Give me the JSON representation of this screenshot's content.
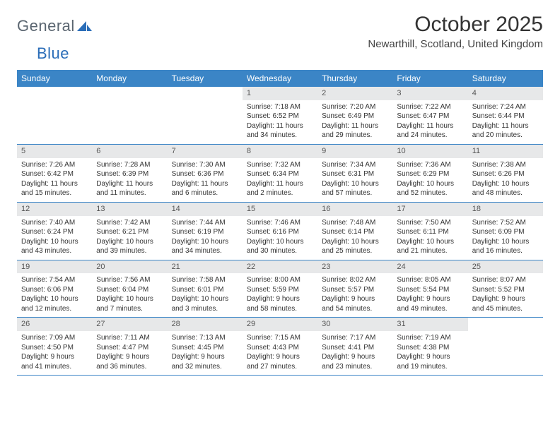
{
  "brand": {
    "name1": "General",
    "name2": "Blue"
  },
  "title": "October 2025",
  "location": "Newarthill, Scotland, United Kingdom",
  "colors": {
    "header_bg": "#3b85c6",
    "header_text": "#ffffff",
    "daynum_bg": "#e7e8e9",
    "rule": "#3b85c6",
    "logo_gray": "#5a6570",
    "logo_blue": "#2a6db8"
  },
  "day_names": [
    "Sunday",
    "Monday",
    "Tuesday",
    "Wednesday",
    "Thursday",
    "Friday",
    "Saturday"
  ],
  "weeks": [
    [
      null,
      null,
      null,
      {
        "d": "1",
        "sr": "Sunrise: 7:18 AM",
        "ss": "Sunset: 6:52 PM",
        "dl": "Daylight: 11 hours and 34 minutes."
      },
      {
        "d": "2",
        "sr": "Sunrise: 7:20 AM",
        "ss": "Sunset: 6:49 PM",
        "dl": "Daylight: 11 hours and 29 minutes."
      },
      {
        "d": "3",
        "sr": "Sunrise: 7:22 AM",
        "ss": "Sunset: 6:47 PM",
        "dl": "Daylight: 11 hours and 24 minutes."
      },
      {
        "d": "4",
        "sr": "Sunrise: 7:24 AM",
        "ss": "Sunset: 6:44 PM",
        "dl": "Daylight: 11 hours and 20 minutes."
      }
    ],
    [
      {
        "d": "5",
        "sr": "Sunrise: 7:26 AM",
        "ss": "Sunset: 6:42 PM",
        "dl": "Daylight: 11 hours and 15 minutes."
      },
      {
        "d": "6",
        "sr": "Sunrise: 7:28 AM",
        "ss": "Sunset: 6:39 PM",
        "dl": "Daylight: 11 hours and 11 minutes."
      },
      {
        "d": "7",
        "sr": "Sunrise: 7:30 AM",
        "ss": "Sunset: 6:36 PM",
        "dl": "Daylight: 11 hours and 6 minutes."
      },
      {
        "d": "8",
        "sr": "Sunrise: 7:32 AM",
        "ss": "Sunset: 6:34 PM",
        "dl": "Daylight: 11 hours and 2 minutes."
      },
      {
        "d": "9",
        "sr": "Sunrise: 7:34 AM",
        "ss": "Sunset: 6:31 PM",
        "dl": "Daylight: 10 hours and 57 minutes."
      },
      {
        "d": "10",
        "sr": "Sunrise: 7:36 AM",
        "ss": "Sunset: 6:29 PM",
        "dl": "Daylight: 10 hours and 52 minutes."
      },
      {
        "d": "11",
        "sr": "Sunrise: 7:38 AM",
        "ss": "Sunset: 6:26 PM",
        "dl": "Daylight: 10 hours and 48 minutes."
      }
    ],
    [
      {
        "d": "12",
        "sr": "Sunrise: 7:40 AM",
        "ss": "Sunset: 6:24 PM",
        "dl": "Daylight: 10 hours and 43 minutes."
      },
      {
        "d": "13",
        "sr": "Sunrise: 7:42 AM",
        "ss": "Sunset: 6:21 PM",
        "dl": "Daylight: 10 hours and 39 minutes."
      },
      {
        "d": "14",
        "sr": "Sunrise: 7:44 AM",
        "ss": "Sunset: 6:19 PM",
        "dl": "Daylight: 10 hours and 34 minutes."
      },
      {
        "d": "15",
        "sr": "Sunrise: 7:46 AM",
        "ss": "Sunset: 6:16 PM",
        "dl": "Daylight: 10 hours and 30 minutes."
      },
      {
        "d": "16",
        "sr": "Sunrise: 7:48 AM",
        "ss": "Sunset: 6:14 PM",
        "dl": "Daylight: 10 hours and 25 minutes."
      },
      {
        "d": "17",
        "sr": "Sunrise: 7:50 AM",
        "ss": "Sunset: 6:11 PM",
        "dl": "Daylight: 10 hours and 21 minutes."
      },
      {
        "d": "18",
        "sr": "Sunrise: 7:52 AM",
        "ss": "Sunset: 6:09 PM",
        "dl": "Daylight: 10 hours and 16 minutes."
      }
    ],
    [
      {
        "d": "19",
        "sr": "Sunrise: 7:54 AM",
        "ss": "Sunset: 6:06 PM",
        "dl": "Daylight: 10 hours and 12 minutes."
      },
      {
        "d": "20",
        "sr": "Sunrise: 7:56 AM",
        "ss": "Sunset: 6:04 PM",
        "dl": "Daylight: 10 hours and 7 minutes."
      },
      {
        "d": "21",
        "sr": "Sunrise: 7:58 AM",
        "ss": "Sunset: 6:01 PM",
        "dl": "Daylight: 10 hours and 3 minutes."
      },
      {
        "d": "22",
        "sr": "Sunrise: 8:00 AM",
        "ss": "Sunset: 5:59 PM",
        "dl": "Daylight: 9 hours and 58 minutes."
      },
      {
        "d": "23",
        "sr": "Sunrise: 8:02 AM",
        "ss": "Sunset: 5:57 PM",
        "dl": "Daylight: 9 hours and 54 minutes."
      },
      {
        "d": "24",
        "sr": "Sunrise: 8:05 AM",
        "ss": "Sunset: 5:54 PM",
        "dl": "Daylight: 9 hours and 49 minutes."
      },
      {
        "d": "25",
        "sr": "Sunrise: 8:07 AM",
        "ss": "Sunset: 5:52 PM",
        "dl": "Daylight: 9 hours and 45 minutes."
      }
    ],
    [
      {
        "d": "26",
        "sr": "Sunrise: 7:09 AM",
        "ss": "Sunset: 4:50 PM",
        "dl": "Daylight: 9 hours and 41 minutes."
      },
      {
        "d": "27",
        "sr": "Sunrise: 7:11 AM",
        "ss": "Sunset: 4:47 PM",
        "dl": "Daylight: 9 hours and 36 minutes."
      },
      {
        "d": "28",
        "sr": "Sunrise: 7:13 AM",
        "ss": "Sunset: 4:45 PM",
        "dl": "Daylight: 9 hours and 32 minutes."
      },
      {
        "d": "29",
        "sr": "Sunrise: 7:15 AM",
        "ss": "Sunset: 4:43 PM",
        "dl": "Daylight: 9 hours and 27 minutes."
      },
      {
        "d": "30",
        "sr": "Sunrise: 7:17 AM",
        "ss": "Sunset: 4:41 PM",
        "dl": "Daylight: 9 hours and 23 minutes."
      },
      {
        "d": "31",
        "sr": "Sunrise: 7:19 AM",
        "ss": "Sunset: 4:38 PM",
        "dl": "Daylight: 9 hours and 19 minutes."
      },
      null
    ]
  ]
}
